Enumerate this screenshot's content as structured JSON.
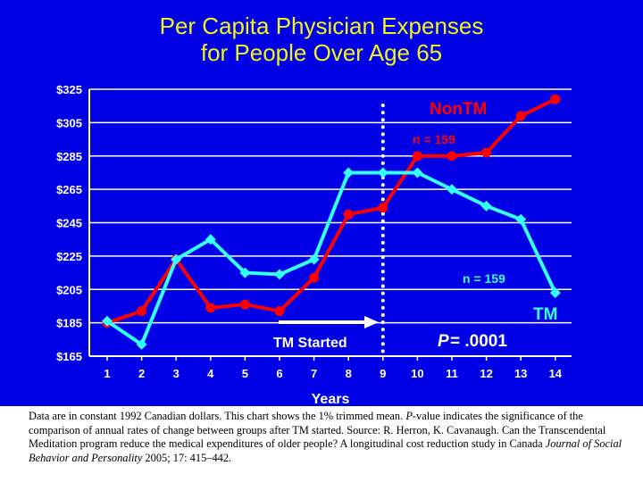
{
  "title_line1": "Per Capita Physician Expenses",
  "title_line2": "for People Over Age 65",
  "colors": {
    "background": "#0000e6",
    "title": "#f2f21a",
    "plot_bg": "#0000e6",
    "nontm": "#ff0000",
    "tm": "#33ffff",
    "axis": "#ffffff"
  },
  "chart_data": {
    "type": "line",
    "x": [
      1,
      2,
      3,
      4,
      5,
      6,
      7,
      8,
      9,
      10,
      11,
      12,
      13,
      14
    ],
    "xlabel": "Years",
    "ylabel": "",
    "ylim": [
      165,
      325
    ],
    "yticks": [
      165,
      185,
      205,
      225,
      245,
      265,
      285,
      305,
      325
    ],
    "ytick_labels": [
      "$165",
      "$185",
      "$205",
      "$225",
      "$245",
      "$265",
      "$285",
      "$305",
      "$325"
    ],
    "grid": true,
    "series": [
      {
        "name": "NonTM",
        "color": "#ff0000",
        "values": [
          185,
          192,
          223,
          194,
          196,
          192,
          212,
          250,
          254,
          285,
          285,
          287,
          309,
          319
        ]
      },
      {
        "name": "TM",
        "color": "#33ffff",
        "values": [
          186,
          172,
          223,
          235,
          215,
          214,
          223,
          275,
          275,
          275,
          265,
          255,
          247,
          203
        ]
      }
    ],
    "annotations": {
      "nontm_n": "n = 159",
      "tm_n": "n = 159",
      "tm_started": "TM Started",
      "p_label": "P",
      "p_value": " = .0001",
      "start_year": 9
    }
  },
  "footnote": {
    "part1": "Data are in constant 1992 Canadian dollars. This chart shows the 1% trimmed mean. ",
    "p_italic": "P",
    "part2": "-value indicates the significance of the comparison of annual rates of change between groups after TM started. Source: R. Herron, K. Cavanaugh. Can the Transcendental Meditation program reduce the medical expenditures of older people? A longitudinal cost reduction study in Canada  ",
    "journal": "Journal of Social Behavior and Personality",
    "part3": " 2005; 17: 415–442."
  }
}
